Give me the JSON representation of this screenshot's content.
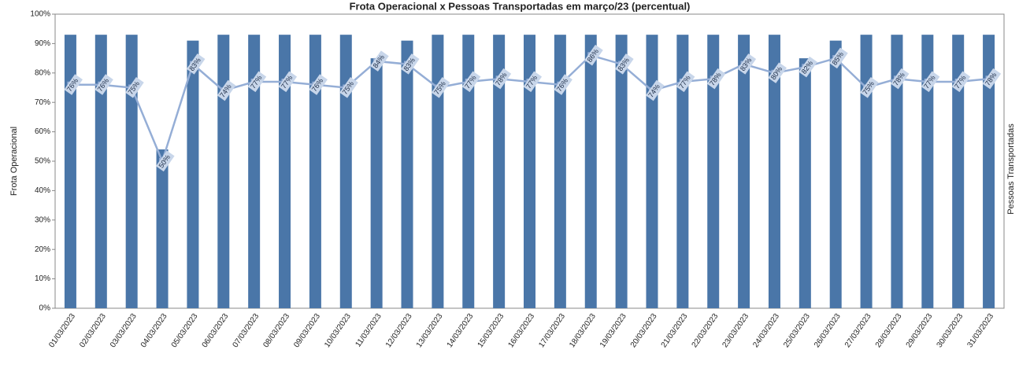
{
  "chart_data": {
    "type": "combo",
    "title": "Frota Operacional x Pessoas Transportadas em março/23 (percentual)",
    "y_label": "Frota Operacional",
    "y2_label": "Pessoas Transportadas",
    "categories": [
      "01/03/2023",
      "02/03/2023",
      "03/03/2023",
      "04/03/2023",
      "05/03/2023",
      "06/03/2023",
      "07/03/2023",
      "08/03/2023",
      "09/03/2023",
      "10/03/2023",
      "11/03/2023",
      "12/03/2023",
      "13/03/2023",
      "14/03/2023",
      "15/03/2023",
      "16/03/2023",
      "17/03/2023",
      "18/03/2023",
      "19/03/2023",
      "20/03/2023",
      "21/03/2023",
      "22/03/2023",
      "23/03/2023",
      "24/03/2023",
      "25/03/2023",
      "26/03/2023",
      "27/03/2023",
      "28/03/2023",
      "29/03/2023",
      "30/03/2023",
      "31/03/2023"
    ],
    "series": [
      {
        "type": "bar",
        "color": "#4a76a8",
        "values": [
          93,
          93,
          93,
          54,
          91,
          93,
          93,
          93,
          93,
          93,
          85,
          91,
          93,
          93,
          93,
          93,
          93,
          93,
          93,
          93,
          93,
          93,
          93,
          93,
          85,
          91,
          93,
          93,
          93,
          93,
          93
        ]
      },
      {
        "type": "line",
        "color": "#95aed6",
        "values": [
          76,
          76,
          75,
          50,
          83,
          74,
          77,
          77,
          76,
          75,
          84,
          83,
          75,
          77,
          78,
          77,
          76,
          86,
          83,
          74,
          77,
          78,
          83,
          80,
          82,
          85,
          75,
          78,
          77,
          77,
          78
        ],
        "value_labels": [
          "76%",
          "76%",
          "75%",
          "50%",
          "83%",
          "74%",
          "77%",
          "77%",
          "76%",
          "75%",
          "84%",
          "83%",
          "75%",
          "77%",
          "78%",
          "77%",
          "76%",
          "86%",
          "83%",
          "74%",
          "77%",
          "78%",
          "83%",
          "80%",
          "82%",
          "85%",
          "75%",
          "78%",
          "77%",
          "77%",
          "78%"
        ]
      }
    ],
    "ylim": [
      0,
      100
    ],
    "yticks": [
      {
        "value": 0,
        "label": "0%"
      },
      {
        "value": 10,
        "label": "10%"
      },
      {
        "value": 20,
        "label": "20%"
      },
      {
        "value": 30,
        "label": "30%"
      },
      {
        "value": 40,
        "label": "40%"
      },
      {
        "value": 50,
        "label": "50%"
      },
      {
        "value": 60,
        "label": "60%"
      },
      {
        "value": 70,
        "label": "70%"
      },
      {
        "value": 80,
        "label": "80%"
      },
      {
        "value": 90,
        "label": "90%"
      },
      {
        "value": 100,
        "label": "100%"
      }
    ]
  }
}
